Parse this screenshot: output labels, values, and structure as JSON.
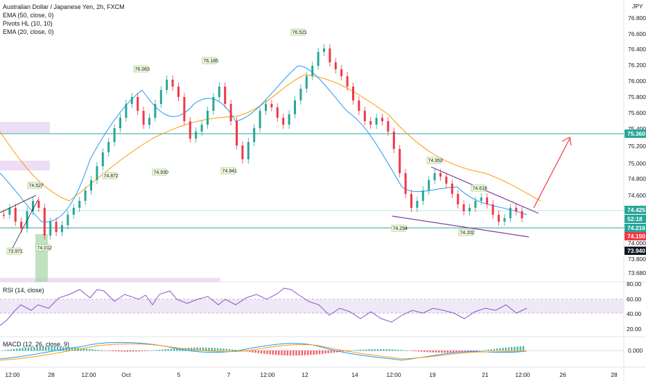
{
  "header": {
    "title": "Australian Dollar / Japanese Yen, 2h, FXCM",
    "indicators": [
      "EMA (50, close, 0)",
      "Pivots HL (10, 10)",
      "EMA (20, close, 0)"
    ],
    "currency": "JPY"
  },
  "rsi": {
    "label": "RSI (14, close)",
    "scale": [
      "80.00",
      "60.00",
      "40.00",
      "20.00"
    ]
  },
  "macd": {
    "label": "MACD (12, 26, close, 9)",
    "scale": [
      "0.000"
    ]
  },
  "price_axis": {
    "ticks": [
      "76.800",
      "76.600",
      "76.400",
      "76.200",
      "76.000",
      "75.800",
      "75.600",
      "75.400",
      "75.200",
      "75.000",
      "74.800",
      "74.600",
      "74.400",
      "74.200",
      "74.000",
      "73.800",
      "73.680"
    ]
  },
  "price_tags": [
    {
      "text": "75.360",
      "color": "#26a69a"
    },
    {
      "text": "74.425",
      "color": "#26a69a"
    },
    {
      "text": "52:18",
      "color": "#26a69a"
    },
    {
      "text": "74.216",
      "color": "#26a69a"
    },
    {
      "text": "74.150",
      "color": "#f23645"
    },
    {
      "text": "73.940",
      "color": "#131722"
    }
  ],
  "time_axis": [
    "12:00",
    "28",
    "12:00",
    "Oct",
    "5",
    "7",
    "12:00",
    "12",
    "14",
    "12:00",
    "19",
    "21",
    "12:00",
    "26",
    "28"
  ],
  "pivot_labels": [
    "74.527",
    "73.971",
    "74.012",
    "76.063",
    "74.872",
    "76.185",
    "74.930",
    "74.941",
    "76.521",
    "74.953",
    "74.294",
    "74.618",
    "74.202"
  ],
  "colors": {
    "up": "#26a69a",
    "down": "#f23645",
    "ema20": "#2196f3",
    "ema50": "#ff9800",
    "rsi": "#7e57c2",
    "channel": "#7b3fa0"
  }
}
